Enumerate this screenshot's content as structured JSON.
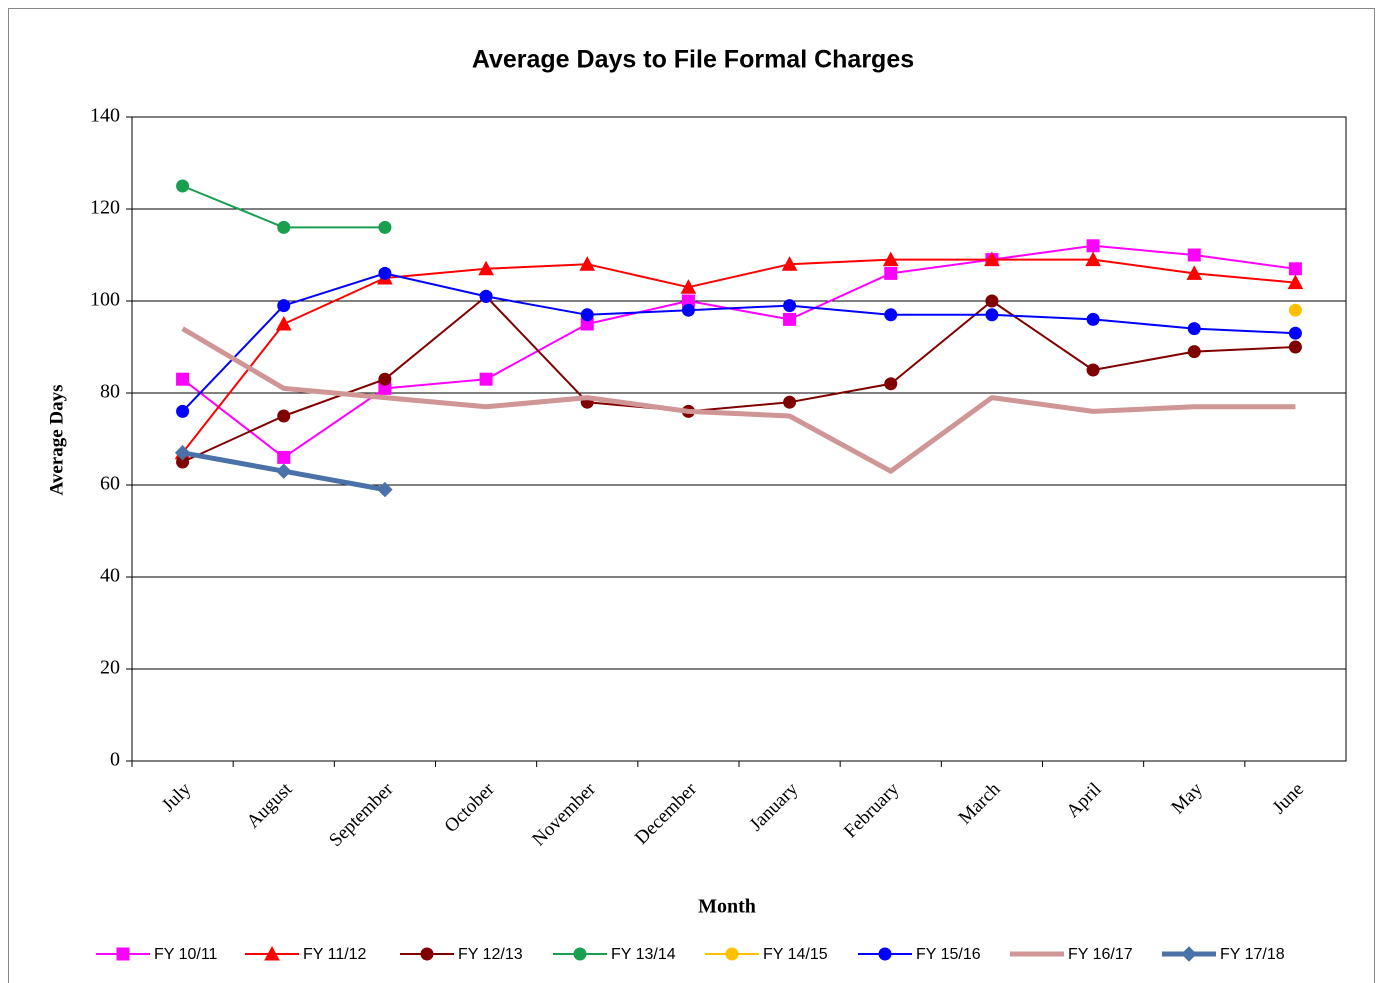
{
  "chart_data": {
    "type": "line",
    "title": "Average Days to File Formal Charges",
    "x_label": "Month",
    "y_label": "Average Days",
    "categories": [
      "July",
      "August",
      "September",
      "October",
      "November",
      "December",
      "January",
      "February",
      "March",
      "April",
      "May",
      "June"
    ],
    "ylim": [
      0,
      140
    ],
    "yticks": [
      0,
      20,
      40,
      60,
      80,
      100,
      120,
      140
    ],
    "grid": true,
    "legend": "bottom",
    "series": [
      {
        "name": "FY 10/11",
        "color": "#ff00ff",
        "marker": "square",
        "line_width": 2,
        "values": [
          83,
          66,
          81,
          83,
          95,
          100,
          96,
          106,
          109,
          112,
          110,
          107
        ]
      },
      {
        "name": "FY 11/12",
        "color": "#ff0000",
        "marker": "triangle",
        "line_width": 2,
        "values": [
          67,
          95,
          105,
          107,
          108,
          103,
          108,
          109,
          109,
          109,
          106,
          104
        ]
      },
      {
        "name": "FY 12/13",
        "color": "#800000",
        "marker": "circle",
        "line_width": 2,
        "values": [
          65,
          75,
          83,
          101,
          78,
          76,
          78,
          82,
          100,
          85,
          89,
          90
        ]
      },
      {
        "name": "FY 13/14",
        "color": "#1a9e50",
        "marker": "circle",
        "line_width": 2,
        "values": [
          125,
          116,
          116,
          null,
          null,
          null,
          null,
          null,
          null,
          null,
          null,
          null
        ]
      },
      {
        "name": "FY 14/15",
        "color": "#ffc000",
        "marker": "circle",
        "line_width": 2,
        "values": [
          null,
          null,
          null,
          null,
          null,
          null,
          null,
          null,
          null,
          null,
          null,
          98
        ]
      },
      {
        "name": "FY 15/16",
        "color": "#0000ff",
        "marker": "circle",
        "line_width": 2,
        "values": [
          76,
          99,
          106,
          101,
          97,
          98,
          99,
          97,
          97,
          96,
          94,
          93
        ]
      },
      {
        "name": "FY 16/17",
        "color": "#d09595",
        "marker": "none",
        "line_width": 5,
        "values": [
          94,
          81,
          79,
          77,
          79,
          76,
          75,
          63,
          79,
          76,
          77,
          77
        ]
      },
      {
        "name": "FY 17/18",
        "color": "#4a72a8",
        "marker": "diamond",
        "line_width": 5,
        "values": [
          67,
          63,
          59,
          null,
          null,
          null,
          null,
          null,
          null,
          null,
          null,
          null
        ]
      }
    ]
  }
}
